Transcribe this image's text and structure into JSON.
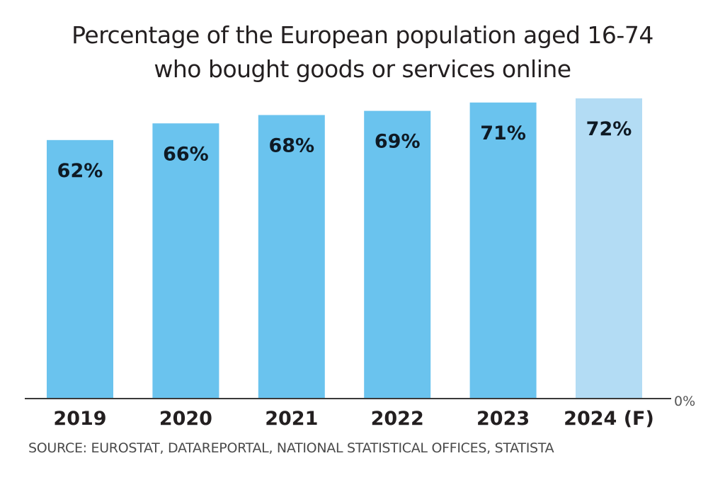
{
  "chart_data": {
    "type": "bar",
    "title": "Percentage of the European population aged 16-74 who bought goods or services online",
    "title_lines": [
      "Percentage of the European population aged 16-74",
      "who bought goods or services online"
    ],
    "categories": [
      "2019",
      "2020",
      "2021",
      "2022",
      "2023",
      "2024 (F)"
    ],
    "values": [
      62,
      66,
      68,
      69,
      71,
      72
    ],
    "data_labels": [
      "62%",
      "66%",
      "68%",
      "69%",
      "71%",
      "72%"
    ],
    "forecast": [
      false,
      false,
      false,
      false,
      false,
      true
    ],
    "xlabel": "",
    "ylabel": "",
    "ylim": [
      0,
      72
    ],
    "baseline_label": "0%",
    "grid": false,
    "legend": "none",
    "colors": {
      "actual": "#6ac3ee",
      "forecast": "#b3dcf4",
      "axis": "#3a3a3a",
      "label": "#0f1a24"
    },
    "source": "SOURCE: EUROSTAT, DATAREPORTAL, NATIONAL STATISTICAL OFFICES, STATISTA"
  }
}
